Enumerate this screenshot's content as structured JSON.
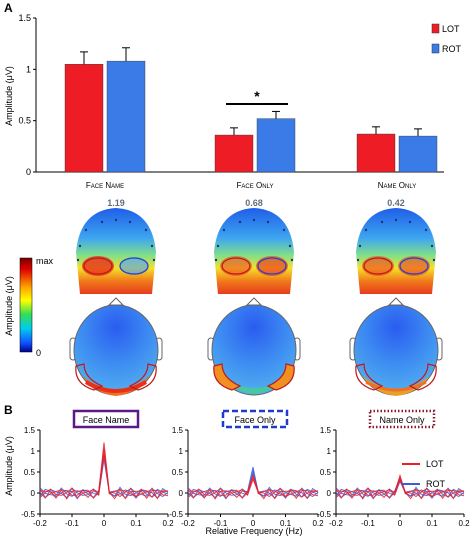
{
  "panel_a": {
    "letter": "A",
    "bar_chart": {
      "type": "bar",
      "ylabel": "Amplitude (μV)",
      "ylim": [
        0,
        1.5
      ],
      "yticks": [
        "0",
        "0.5",
        "1",
        "1.5"
      ],
      "categories": [
        "Face Name",
        "Face Only",
        "Name Only"
      ],
      "series": [
        {
          "name": "LOT",
          "color": "#ee1c25",
          "values": [
            1.05,
            0.36,
            0.37
          ],
          "errors": [
            0.12,
            0.07,
            0.07
          ]
        },
        {
          "name": "ROT",
          "color": "#3a7be8",
          "values": [
            1.08,
            0.52,
            0.35
          ],
          "errors": [
            0.13,
            0.07,
            0.07
          ]
        }
      ],
      "significance": "*"
    },
    "topo_values": [
      "1.19",
      "0.68",
      "0.42"
    ],
    "colorbar": {
      "label": "Amplitude (μV)",
      "max_label": "max",
      "min_label": "0"
    }
  },
  "panel_b": {
    "letter": "B",
    "ylabel": "Amplitude (μV)",
    "xlabel": "Relative Frequency (Hz)",
    "ylim": [
      -0.5,
      1.5
    ],
    "xlim": [
      -0.2,
      0.2
    ],
    "yticks": [
      "-0.5",
      "0",
      "0.5",
      "1",
      "1.5"
    ],
    "xticks": [
      "-0.2",
      "-0.1",
      "0",
      "0.1",
      "0.2"
    ],
    "legend": [
      {
        "name": "LOT",
        "color": "#ee1c25"
      },
      {
        "name": "ROT",
        "color": "#3a5fd8"
      }
    ],
    "conditions": [
      {
        "title": "Face Name",
        "frame": "solid",
        "frame_color": "#5b1a87",
        "peak_lot": 1.2,
        "peak_rot": 1.05
      },
      {
        "title": "Face Only",
        "frame": "dashed",
        "frame_color": "#1f3ad1",
        "peak_lot": 0.42,
        "peak_rot": 0.62
      },
      {
        "title": "Name Only",
        "frame": "dotted",
        "frame_color": "#8b1a2e",
        "peak_lot": 0.42,
        "peak_rot": 0.36
      }
    ]
  }
}
